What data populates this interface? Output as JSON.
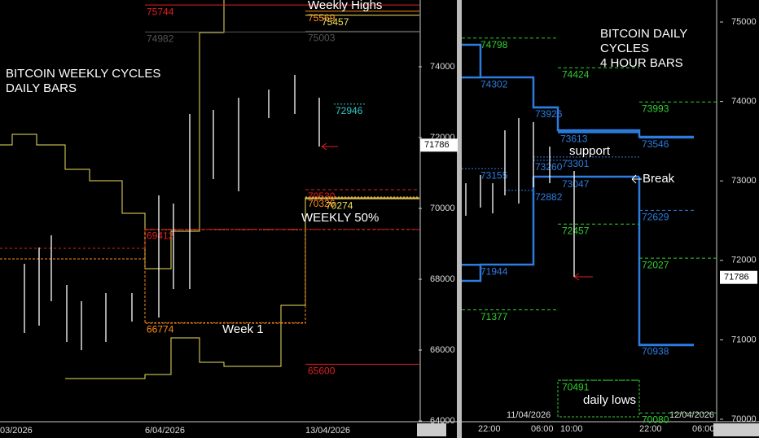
{
  "chart_data": [
    {
      "type": "ohlc",
      "title_lines": [
        "BITCOIN WEEKLY CYCLES",
        "DAILY BARS"
      ],
      "annotations": [
        "Weekly Highs",
        "WEEKLY 50%",
        "Week 1"
      ],
      "x_labels": [
        "03/2026",
        "6/04/2026",
        "13/04/2026"
      ],
      "ylim": [
        64000,
        75885
      ],
      "yticks": [
        64000,
        66000,
        68000,
        70000,
        72000,
        74000
      ],
      "last": 71786,
      "bar_color": "#ffffff",
      "high": [
        68437,
        68897,
        69241,
        67839,
        67379,
        67609,
        67609,
        70368,
        70138,
        72667,
        72782,
        73126,
        73356,
        73770,
        73126
      ],
      "low": [
        66483,
        66690,
        67379,
        66230,
        66000,
        66230,
        66805,
        66920,
        67724,
        67724,
        70828,
        70483,
        72552,
        72667,
        71747
      ],
      "levels": [
        {
          "value": 75744,
          "color": "#e02020",
          "style": "solid"
        },
        {
          "value": 75569,
          "color": "#ff8c1a",
          "style": "solid"
        },
        {
          "value": 75457,
          "color": "#f0e060",
          "style": "solid"
        },
        {
          "value": 75003,
          "color": "#555555",
          "style": "solid"
        },
        {
          "value": 74982,
          "color": "#555555",
          "style": "solid"
        },
        {
          "value": 72946,
          "color": "#30c8c8",
          "style": "dotted"
        },
        {
          "value": 70530,
          "color": "#e02020",
          "style": "dashed"
        },
        {
          "value": 70326,
          "color": "#ff8c1a",
          "style": "dotted"
        },
        {
          "value": 70274,
          "color": "#f0e060",
          "style": "solid"
        },
        {
          "value": 69412,
          "color": "#e02020",
          "style": "dashed"
        },
        {
          "value": 66774,
          "color": "#ff8c1a",
          "style": "dotted"
        },
        {
          "value": 65600,
          "color": "#e02020",
          "style": "solid"
        }
      ]
    },
    {
      "type": "ohlc",
      "title_lines": [
        "BITCOIN DAILY",
        "CYCLES",
        "4 HOUR BARS"
      ],
      "annotations": [
        "support",
        "Break",
        "daily lows"
      ],
      "x_labels": [
        "22:00",
        "11/04/2026",
        "06:00",
        "10:00",
        "22:00",
        "12/04/2026",
        "06:00"
      ],
      "ylim": [
        70000,
        75277
      ],
      "yticks": [
        70000,
        71000,
        72000,
        73000,
        74000,
        75000
      ],
      "last": 71786,
      "bar_color": "#ffffff",
      "high": [
        72971,
        73074,
        72971,
        73637,
        73791,
        73740,
        73432,
        73125
      ],
      "low": [
        72561,
        72664,
        72592,
        72818,
        72715,
        72920,
        72971,
        71793
      ],
      "levels": [
        {
          "value": 74798,
          "color": "#30d030",
          "style": "dashed"
        },
        {
          "value": 74302,
          "color": "#2d7de0",
          "style": "solid"
        },
        {
          "value": 74424,
          "color": "#30d030",
          "style": "dashed"
        },
        {
          "value": 73993,
          "color": "#30d030",
          "style": "dashed"
        },
        {
          "value": 73926,
          "color": "#2d7de0",
          "style": "solid"
        },
        {
          "value": 73613,
          "color": "#2d7de0",
          "style": "solid"
        },
        {
          "value": 73546,
          "color": "#2d7de0",
          "style": "solid"
        },
        {
          "value": 73301,
          "color": "#2d7de0",
          "style": "dotted"
        },
        {
          "value": 73260,
          "color": "#2d7de0",
          "style": "dotted"
        },
        {
          "value": 73155,
          "color": "#2d7de0",
          "style": "dotted"
        },
        {
          "value": 73047,
          "color": "#2d7de0",
          "style": "dotted"
        },
        {
          "value": 72882,
          "color": "#2d7de0",
          "style": "dotted"
        },
        {
          "value": 72629,
          "color": "#2d7de0",
          "style": "dashed"
        },
        {
          "value": 72457,
          "color": "#30d030",
          "style": "dashed"
        },
        {
          "value": 72027,
          "color": "#30d030",
          "style": "dashed"
        },
        {
          "value": 71944,
          "color": "#2d7de0",
          "style": "solid"
        },
        {
          "value": 71377,
          "color": "#30d030",
          "style": "dashed"
        },
        {
          "value": 70938,
          "color": "#2d7de0",
          "style": "solid"
        },
        {
          "value": 70491,
          "color": "#30d030",
          "style": "dashed"
        },
        {
          "value": 70080,
          "color": "#30d030",
          "style": "dashed"
        }
      ]
    }
  ]
}
